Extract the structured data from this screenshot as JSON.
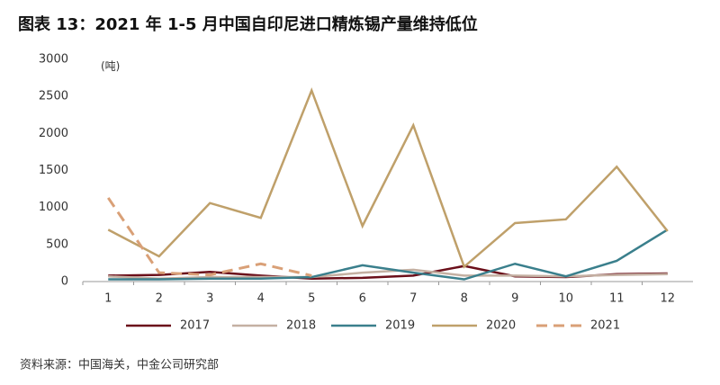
{
  "chart_data": {
    "type": "line",
    "title": "图表 13：2021 年 1-5 月中国自印尼进口精炼锡产量维持低位",
    "y_unit": "(吨)",
    "source": "资料来源：中国海关，中金公司研究部",
    "categories": [
      "1",
      "2",
      "3",
      "4",
      "5",
      "6",
      "7",
      "8",
      "9",
      "10",
      "11",
      "12"
    ],
    "series": [
      {
        "name": "2017",
        "color": "#6b0f1a",
        "dashed": false,
        "values": [
          80,
          90,
          130,
          80,
          40,
          50,
          80,
          210,
          70,
          60,
          100,
          110
        ]
      },
      {
        "name": "2018",
        "color": "#c4b0a2",
        "dashed": false,
        "values": [
          70,
          40,
          60,
          60,
          60,
          120,
          160,
          80,
          80,
          70,
          90,
          100
        ]
      },
      {
        "name": "2019",
        "color": "#3a7f8c",
        "dashed": false,
        "values": [
          30,
          30,
          40,
          40,
          60,
          220,
          120,
          30,
          240,
          70,
          280,
          700
        ]
      },
      {
        "name": "2020",
        "color": "#bfa06a",
        "dashed": false,
        "values": [
          700,
          340,
          1060,
          860,
          2580,
          750,
          2110,
          200,
          790,
          840,
          1550,
          680
        ]
      },
      {
        "name": "2021",
        "color": "#d9a077",
        "dashed": true,
        "values": [
          1130,
          120,
          90,
          240,
          80,
          null,
          null,
          null,
          null,
          null,
          null,
          null
        ]
      }
    ],
    "ylim": [
      0,
      3000
    ],
    "yticks": [
      0,
      500,
      1000,
      1500,
      2000,
      2500,
      3000
    ]
  }
}
